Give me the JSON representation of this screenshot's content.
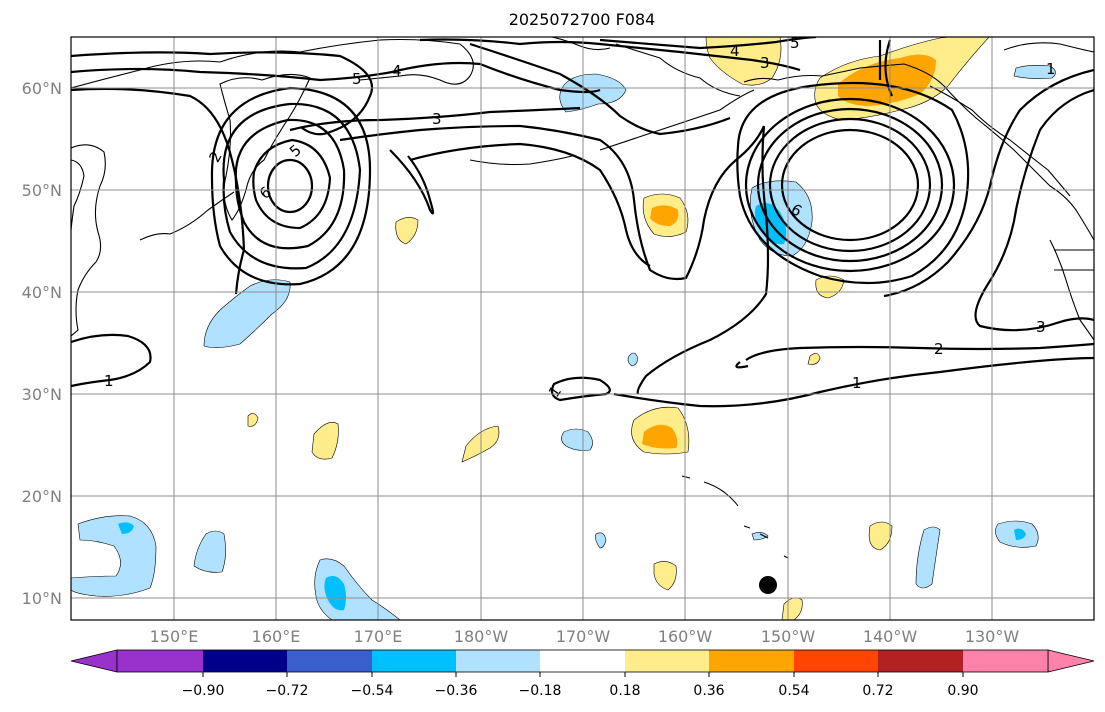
{
  "title": "2025072700 F084",
  "map": {
    "lat_labels": [
      "60°N",
      "50°N",
      "40°N",
      "30°N",
      "20°N",
      "10°N"
    ],
    "lon_labels": [
      "150°E",
      "160°E",
      "170°E",
      "180°W",
      "170°W",
      "160°W",
      "150°W",
      "140°W",
      "130°W"
    ],
    "contour_labels": [
      "1",
      "1",
      "1",
      "1",
      "2",
      "2",
      "3",
      "3",
      "4",
      "4",
      "5",
      "5",
      "5",
      "6",
      "6",
      "3"
    ],
    "marker": "storm-position-dot"
  },
  "colorbar": {
    "ticks": [
      "−0.90",
      "−0.72",
      "−0.54",
      "−0.36",
      "−0.18",
      "0.18",
      "0.36",
      "0.54",
      "0.72",
      "0.90"
    ],
    "colors": [
      "#9932cc",
      "#00008b",
      "#3a5fcd",
      "#00bfff",
      "#b0e2ff",
      "#ffffff",
      "#ffec8b",
      "#ffa500",
      "#ff4500",
      "#b22222",
      "#ff82ab"
    ]
  },
  "colors": {
    "light_blue": "#b0e2ff",
    "blue": "#00bfff",
    "light_yellow": "#ffec8b",
    "orange": "#ffa500",
    "grid": "#8c8c8c"
  }
}
